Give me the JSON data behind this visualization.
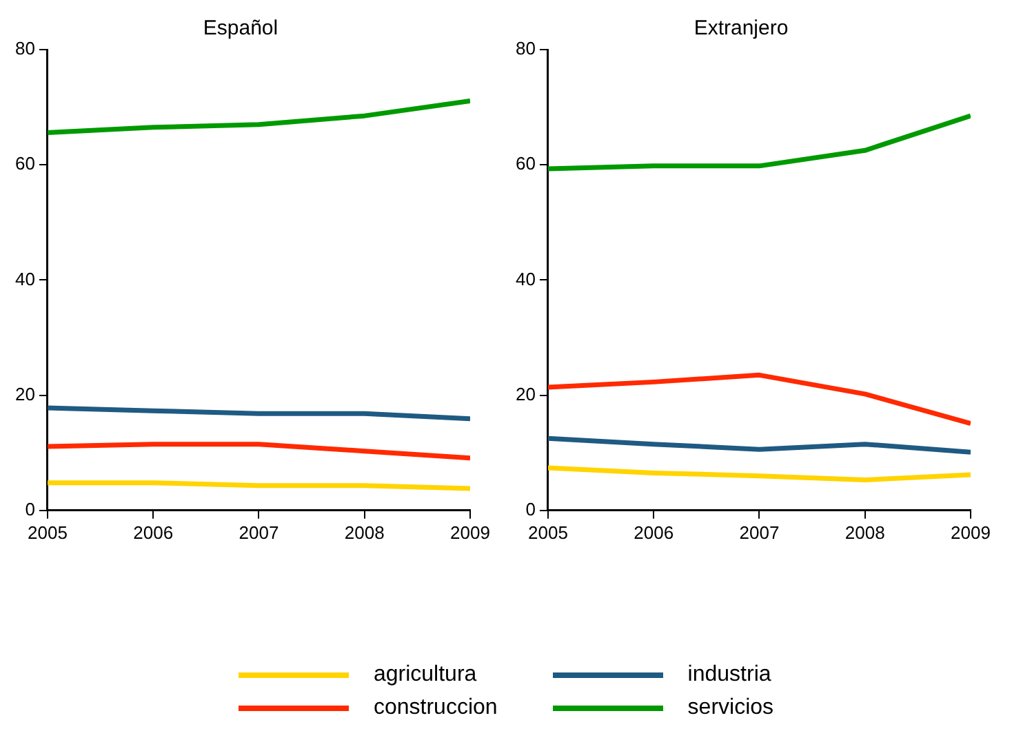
{
  "chart_data": [
    {
      "type": "line",
      "title": "Español",
      "x": [
        2005,
        2006,
        2007,
        2008,
        2009
      ],
      "xlim": [
        2005,
        2009
      ],
      "xticks": [
        2005,
        2006,
        2007,
        2008,
        2009
      ],
      "ylim": [
        0,
        80
      ],
      "yticks": [
        0,
        20,
        40,
        60,
        80
      ],
      "grid": false,
      "legend": "bottom",
      "marker": "none",
      "series": [
        {
          "name": "agricultura",
          "color": "#ffd400",
          "values": [
            4.8,
            4.8,
            4.3,
            4.3,
            3.8
          ]
        },
        {
          "name": "construccion",
          "color": "#ff2a00",
          "values": [
            11.1,
            11.5,
            11.5,
            10.3,
            9.1
          ]
        },
        {
          "name": "industria",
          "color": "#1f5a82",
          "values": [
            17.8,
            17.3,
            16.8,
            16.8,
            15.9
          ]
        },
        {
          "name": "servicios",
          "color": "#009a00",
          "values": [
            65.6,
            66.5,
            67.0,
            68.5,
            71.1
          ]
        }
      ]
    },
    {
      "type": "line",
      "title": "Extranjero",
      "x": [
        2005,
        2006,
        2007,
        2008,
        2009
      ],
      "xlim": [
        2005,
        2009
      ],
      "xticks": [
        2005,
        2006,
        2007,
        2008,
        2009
      ],
      "ylim": [
        0,
        80
      ],
      "yticks": [
        0,
        20,
        40,
        60,
        80
      ],
      "grid": false,
      "legend": "bottom",
      "marker": "none",
      "series": [
        {
          "name": "agricultura",
          "color": "#ffd400",
          "values": [
            7.4,
            6.5,
            6.0,
            5.3,
            6.2
          ]
        },
        {
          "name": "construccion",
          "color": "#ff2a00",
          "values": [
            21.4,
            22.3,
            23.5,
            20.2,
            15.1
          ]
        },
        {
          "name": "industria",
          "color": "#1f5a82",
          "values": [
            12.5,
            11.5,
            10.6,
            11.5,
            10.1
          ]
        },
        {
          "name": "servicios",
          "color": "#009a00",
          "values": [
            59.3,
            59.8,
            59.8,
            62.5,
            68.5
          ]
        }
      ]
    }
  ]
}
